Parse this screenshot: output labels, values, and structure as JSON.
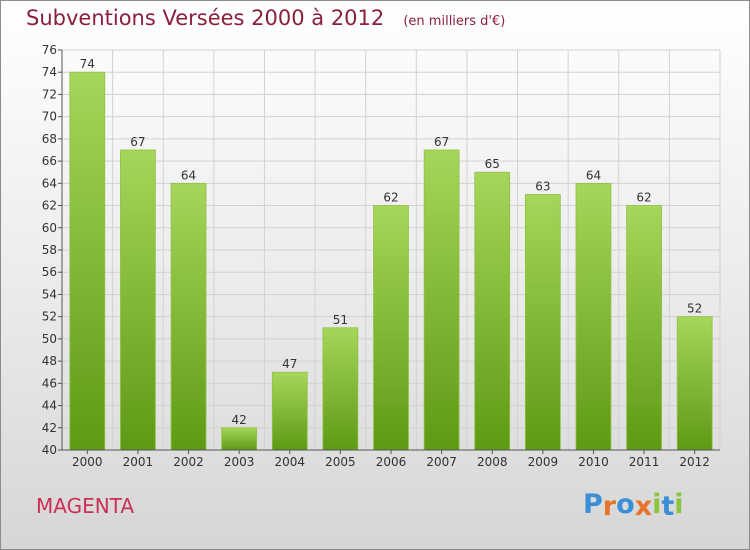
{
  "header": {
    "title": "Subventions Versées 2000 à 2012",
    "subtitle": "(en milliers d'€)"
  },
  "place": "MAGENTA",
  "logo": {
    "text": "Proxiti",
    "letter_colors": [
      "#3a8fd6",
      "#e8732a",
      "#3a8fd6",
      "#e8732a",
      "#8cc63f",
      "#3a8fd6",
      "#8cc63f"
    ]
  },
  "colors": {
    "bar_top": "#a6d65a",
    "bar_bottom": "#5e9a14",
    "title": "#8b1f3c",
    "place": "#cc2f55",
    "grid": "#d2d2d2"
  },
  "chart_data": {
    "type": "bar",
    "categories": [
      "2000",
      "2001",
      "2002",
      "2003",
      "2004",
      "2005",
      "2006",
      "2007",
      "2008",
      "2009",
      "2010",
      "2011",
      "2012"
    ],
    "values": [
      74,
      67,
      64,
      42,
      47,
      51,
      62,
      67,
      65,
      63,
      64,
      62,
      52
    ],
    "ylim": [
      40,
      76
    ],
    "ytick_step": 2,
    "grid": true,
    "data_labels": true
  }
}
